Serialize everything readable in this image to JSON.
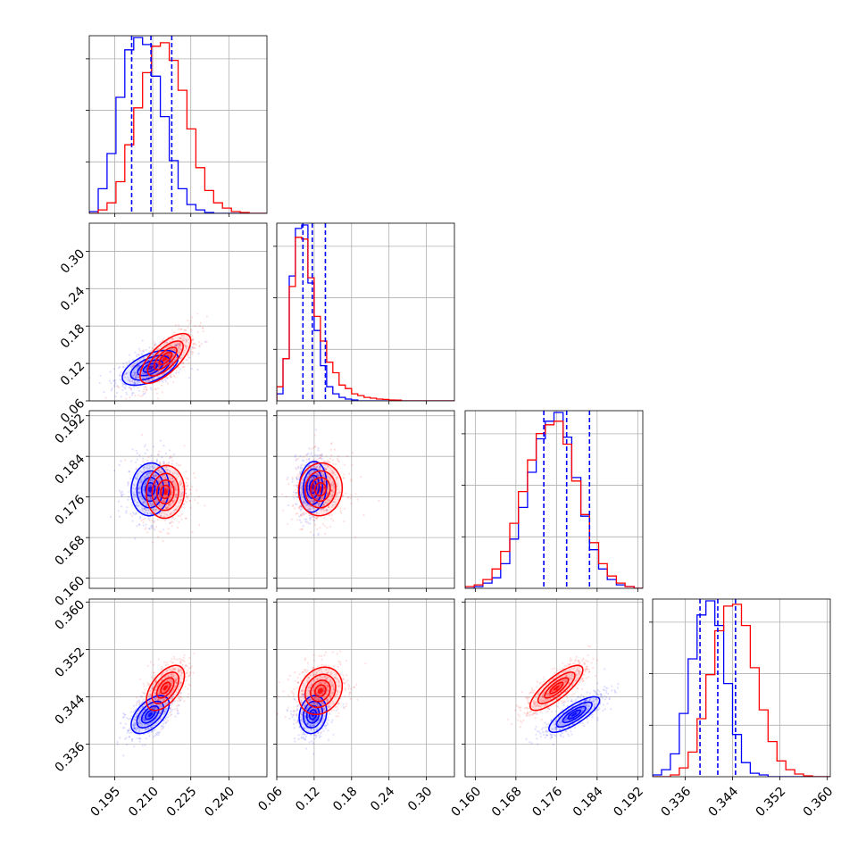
{
  "chart_data": {
    "type": "scatter",
    "title": "",
    "subtitle": "",
    "layout": "corner-plot",
    "grid": true,
    "legend": "none",
    "colors": {
      "series_a": "#0000ff",
      "series_b": "#ff0000",
      "quantile": "#0000ff"
    },
    "series": [
      {
        "color": "#0000ff",
        "centers": [
          0.209,
          0.118,
          0.1775,
          0.341
        ]
      },
      {
        "color": "#ff0000",
        "centers": [
          0.215,
          0.13,
          0.177,
          0.345
        ]
      }
    ],
    "parameters": [
      {
        "index": 0,
        "range": [
          0.185,
          0.255
        ],
        "ticks": [
          0.195,
          0.21,
          0.225,
          0.24
        ],
        "tick_labels": [
          "0.195",
          "0.210",
          "0.225",
          "0.240"
        ],
        "quantiles": [
          0.2017,
          0.2093,
          0.2175
        ]
      },
      {
        "index": 1,
        "range": [
          0.06,
          0.345
        ],
        "ticks": [
          0.06,
          0.12,
          0.18,
          0.24,
          0.3
        ],
        "tick_labels": [
          "0.06",
          "0.12",
          "0.18",
          "0.24",
          "0.30"
        ],
        "quantiles": [
          0.102,
          0.117,
          0.138
        ]
      },
      {
        "index": 2,
        "range": [
          0.158,
          0.193
        ],
        "ticks": [
          0.16,
          0.168,
          0.176,
          0.184,
          0.192
        ],
        "tick_labels": [
          "0.160",
          "0.168",
          "0.176",
          "0.184",
          "0.192"
        ],
        "quantiles": [
          0.1735,
          0.178,
          0.1825
        ]
      },
      {
        "index": 3,
        "range": [
          0.3305,
          0.3605
        ],
        "ticks": [
          0.336,
          0.344,
          0.352,
          0.36
        ],
        "tick_labels": [
          "0.336",
          "0.344",
          "0.352",
          "0.360"
        ],
        "quantiles": [
          0.3385,
          0.3415,
          0.3445
        ]
      }
    ],
    "histograms": [
      {
        "param": 0,
        "bins": [
          0.185,
          0.1885,
          0.192,
          0.1955,
          0.199,
          0.2025,
          0.206,
          0.2095,
          0.213,
          0.2165,
          0.22,
          0.2235,
          0.227,
          0.2305,
          0.234,
          0.2375,
          0.241,
          0.2445,
          0.248,
          0.2515,
          0.255
        ],
        "series": [
          {
            "color": "#0000ff",
            "counts": [
              0.01,
              0.14,
              0.34,
              0.66,
              0.93,
              1.0,
              0.96,
              0.78,
              0.55,
              0.3,
              0.14,
              0.05,
              0.02,
              0.005,
              0,
              0,
              0,
              0,
              0,
              0
            ]
          },
          {
            "color": "#ff0000",
            "counts": [
              0,
              0.02,
              0.06,
              0.18,
              0.39,
              0.6,
              0.8,
              0.95,
              0.97,
              0.87,
              0.7,
              0.48,
              0.26,
              0.13,
              0.06,
              0.03,
              0.01,
              0.005,
              0,
              0
            ]
          }
        ]
      },
      {
        "param": 1,
        "bins": [
          0.06,
          0.07,
          0.08,
          0.09,
          0.1,
          0.11,
          0.12,
          0.13,
          0.14,
          0.15,
          0.16,
          0.17,
          0.18,
          0.19,
          0.2,
          0.21,
          0.22,
          0.23,
          0.24,
          0.25,
          0.26,
          0.27,
          0.28,
          0.29,
          0.3,
          0.31,
          0.32,
          0.33,
          0.345
        ],
        "series": [
          {
            "color": "#0000ff",
            "counts": [
              0.04,
              0.24,
              0.71,
              0.98,
              1.0,
              0.67,
              0.4,
              0.2,
              0.08,
              0.04,
              0.02,
              0.01,
              0.005,
              0,
              0,
              0,
              0,
              0,
              0,
              0,
              0,
              0,
              0,
              0,
              0,
              0,
              0,
              0
            ]
          },
          {
            "color": "#ff0000",
            "counts": [
              0.08,
              0.24,
              0.65,
              0.93,
              0.92,
              0.7,
              0.48,
              0.34,
              0.22,
              0.16,
              0.09,
              0.07,
              0.04,
              0.03,
              0.02,
              0.015,
              0.01,
              0.008,
              0.005,
              0.004,
              0,
              0,
              0,
              0,
              0,
              0,
              0,
              0
            ]
          }
        ]
      },
      {
        "param": 2,
        "bins": [
          0.158,
          0.1598,
          0.1615,
          0.1633,
          0.165,
          0.1668,
          0.1685,
          0.1703,
          0.172,
          0.1738,
          0.1755,
          0.1773,
          0.179,
          0.1808,
          0.1825,
          0.1843,
          0.186,
          0.1878,
          0.1895,
          0.1913,
          0.193
        ],
        "series": [
          {
            "color": "#0000ff",
            "counts": [
              0,
              0.01,
              0.03,
              0.06,
              0.14,
              0.28,
              0.46,
              0.66,
              0.85,
              0.95,
              1.0,
              0.86,
              0.63,
              0.41,
              0.22,
              0.11,
              0.05,
              0.02,
              0.01,
              0
            ]
          },
          {
            "color": "#ff0000",
            "counts": [
              0.01,
              0.02,
              0.05,
              0.11,
              0.21,
              0.37,
              0.55,
              0.73,
              0.88,
              0.93,
              0.95,
              0.82,
              0.61,
              0.42,
              0.26,
              0.14,
              0.07,
              0.03,
              0.01,
              0
            ]
          }
        ]
      },
      {
        "param": 3,
        "bins": [
          0.3305,
          0.332,
          0.3335,
          0.335,
          0.3365,
          0.338,
          0.3395,
          0.341,
          0.3425,
          0.344,
          0.3455,
          0.347,
          0.3485,
          0.35,
          0.3515,
          0.353,
          0.3545,
          0.356,
          0.3575,
          0.359,
          0.3605
        ],
        "series": [
          {
            "color": "#0000ff",
            "counts": [
              0.01,
              0.04,
              0.13,
              0.36,
              0.67,
              0.92,
              1.0,
              0.86,
              0.53,
              0.24,
              0.08,
              0.02,
              0.01,
              0,
              0,
              0,
              0,
              0,
              0,
              0
            ]
          },
          {
            "color": "#ff0000",
            "counts": [
              0,
              0,
              0.01,
              0.05,
              0.14,
              0.33,
              0.58,
              0.83,
              0.97,
              0.98,
              0.86,
              0.62,
              0.38,
              0.2,
              0.09,
              0.04,
              0.015,
              0.005,
              0,
              0
            ]
          }
        ]
      }
    ],
    "panels": [
      {
        "row": 1,
        "col": 0,
        "series": [
          {
            "color": "#0000ff",
            "center": [
              0.209,
              0.113
            ],
            "rx": 0.011,
            "ry": 0.028,
            "rho": 0.55
          },
          {
            "color": "#ff0000",
            "center": [
              0.215,
              0.128
            ],
            "rx": 0.01,
            "ry": 0.04,
            "rho": 0.7
          }
        ]
      },
      {
        "row": 2,
        "col": 0,
        "series": [
          {
            "color": "#0000ff",
            "center": [
              0.209,
              0.1775
            ],
            "rx": 0.0075,
            "ry": 0.0052,
            "rho": 0.05
          },
          {
            "color": "#ff0000",
            "center": [
              0.215,
              0.177
            ],
            "rx": 0.0075,
            "ry": 0.0052,
            "rho": 0.05
          }
        ]
      },
      {
        "row": 2,
        "col": 1,
        "series": [
          {
            "color": "#0000ff",
            "center": [
              0.118,
              0.178
            ],
            "rx": 0.022,
            "ry": 0.005,
            "rho": 0.1
          },
          {
            "color": "#ff0000",
            "center": [
              0.13,
              0.1775
            ],
            "rx": 0.035,
            "ry": 0.0052,
            "rho": 0.05
          }
        ]
      },
      {
        "row": 3,
        "col": 0,
        "series": [
          {
            "color": "#0000ff",
            "center": [
              0.209,
              0.341
            ],
            "rx": 0.0075,
            "ry": 0.0032,
            "rho": 0.55
          },
          {
            "color": "#ff0000",
            "center": [
              0.215,
              0.3455
            ],
            "rx": 0.0075,
            "ry": 0.0038,
            "rho": 0.55
          }
        ]
      },
      {
        "row": 3,
        "col": 1,
        "series": [
          {
            "color": "#0000ff",
            "center": [
              0.118,
              0.341
            ],
            "rx": 0.022,
            "ry": 0.0032,
            "rho": 0.15
          },
          {
            "color": "#ff0000",
            "center": [
              0.13,
              0.345
            ],
            "rx": 0.035,
            "ry": 0.004,
            "rho": 0.2
          }
        ]
      },
      {
        "row": 3,
        "col": 2,
        "series": [
          {
            "color": "#0000ff",
            "center": [
              0.1795,
              0.341
            ],
            "rx": 0.005,
            "ry": 0.003,
            "rho": 0.8
          },
          {
            "color": "#ff0000",
            "center": [
              0.176,
              0.3455
            ],
            "rx": 0.0052,
            "ry": 0.0038,
            "rho": 0.8
          }
        ]
      }
    ]
  }
}
